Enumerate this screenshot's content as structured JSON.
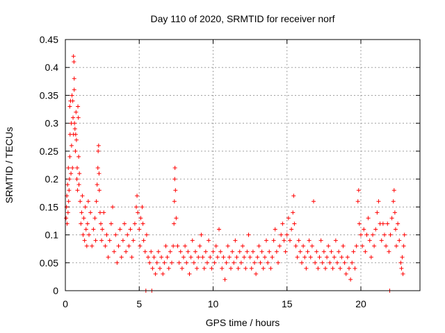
{
  "chart_data": {
    "type": "scatter",
    "title": "Day 110 of 2020, SRMTID for receiver norf",
    "xlabel": "GPS time / hours",
    "ylabel": "SRMTID / TECUs",
    "xlim": [
      0,
      24
    ],
    "ylim": [
      0,
      0.45
    ],
    "xticks": [
      0,
      5,
      10,
      15,
      20
    ],
    "yticks": [
      0,
      0.05,
      0.1,
      0.15,
      0.2,
      0.25,
      0.3,
      0.35,
      0.4,
      0.45
    ],
    "xtick_labels": [
      "0",
      "5",
      "10",
      "15",
      "20"
    ],
    "ytick_labels": [
      "0",
      "0.05",
      "0.1",
      "0.15",
      "0.2",
      "0.25",
      "0.3",
      "0.35",
      "0.4",
      "0.45"
    ],
    "grid": true,
    "marker": "+",
    "color": "#ff0000",
    "series": [
      {
        "name": "SRMTID",
        "points": [
          [
            0.05,
            0.13
          ],
          [
            0.08,
            0.15
          ],
          [
            0.1,
            0.17
          ],
          [
            0.12,
            0.12
          ],
          [
            0.15,
            0.19
          ],
          [
            0.18,
            0.14
          ],
          [
            0.2,
            0.22
          ],
          [
            0.22,
            0.16
          ],
          [
            0.25,
            0.18
          ],
          [
            0.28,
            0.2
          ],
          [
            0.3,
            0.24
          ],
          [
            0.3,
            0.33
          ],
          [
            0.32,
            0.28
          ],
          [
            0.35,
            0.34
          ],
          [
            0.38,
            0.21
          ],
          [
            0.4,
            0.3
          ],
          [
            0.42,
            0.26
          ],
          [
            0.45,
            0.35
          ],
          [
            0.48,
            0.22
          ],
          [
            0.5,
            0.34
          ],
          [
            0.52,
            0.31
          ],
          [
            0.55,
            0.28
          ],
          [
            0.55,
            0.42
          ],
          [
            0.58,
            0.41
          ],
          [
            0.6,
            0.38
          ],
          [
            0.6,
            0.36
          ],
          [
            0.62,
            0.3
          ],
          [
            0.65,
            0.29
          ],
          [
            0.68,
            0.25
          ],
          [
            0.7,
            0.28
          ],
          [
            0.72,
            0.32
          ],
          [
            0.75,
            0.27
          ],
          [
            0.78,
            0.2
          ],
          [
            0.8,
            0.22
          ],
          [
            0.82,
            0.18
          ],
          [
            0.85,
            0.33
          ],
          [
            0.88,
            0.31
          ],
          [
            0.9,
            0.24
          ],
          [
            0.92,
            0.19
          ],
          [
            0.95,
            0.21
          ],
          [
            1.0,
            0.16
          ],
          [
            1.05,
            0.12
          ],
          [
            1.1,
            0.14
          ],
          [
            1.15,
            0.17
          ],
          [
            1.2,
            0.1
          ],
          [
            1.25,
            0.13
          ],
          [
            1.3,
            0.09
          ],
          [
            1.35,
            0.15
          ],
          [
            1.4,
            0.11
          ],
          [
            1.45,
            0.08
          ],
          [
            1.5,
            0.12
          ],
          [
            1.55,
            0.16
          ],
          [
            1.6,
            0.1
          ],
          [
            1.7,
            0.14
          ],
          [
            1.8,
            0.08
          ],
          [
            1.9,
            0.11
          ],
          [
            2.0,
            0.13
          ],
          [
            2.05,
            0.09
          ],
          [
            2.1,
            0.16
          ],
          [
            2.15,
            0.19
          ],
          [
            2.2,
            0.22
          ],
          [
            2.22,
            0.25
          ],
          [
            2.25,
            0.26
          ],
          [
            2.28,
            0.21
          ],
          [
            2.3,
            0.18
          ],
          [
            2.35,
            0.14
          ],
          [
            2.4,
            0.12
          ],
          [
            2.45,
            0.09
          ],
          [
            2.5,
            0.11
          ],
          [
            2.6,
            0.14
          ],
          [
            2.7,
            0.08
          ],
          [
            2.8,
            0.1
          ],
          [
            2.9,
            0.06
          ],
          [
            3.0,
            0.09
          ],
          [
            3.1,
            0.12
          ],
          [
            3.2,
            0.15
          ],
          [
            3.3,
            0.07
          ],
          [
            3.4,
            0.1
          ],
          [
            3.5,
            0.05
          ],
          [
            3.6,
            0.08
          ],
          [
            3.7,
            0.11
          ],
          [
            3.8,
            0.06
          ],
          [
            3.9,
            0.09
          ],
          [
            4.0,
            0.12
          ],
          [
            4.1,
            0.07
          ],
          [
            4.2,
            0.1
          ],
          [
            4.3,
            0.08
          ],
          [
            4.4,
            0.11
          ],
          [
            4.5,
            0.06
          ],
          [
            4.6,
            0.09
          ],
          [
            4.7,
            0.12
          ],
          [
            4.8,
            0.15
          ],
          [
            4.85,
            0.17
          ],
          [
            4.9,
            0.14
          ],
          [
            5.0,
            0.11
          ],
          [
            5.05,
            0.08
          ],
          [
            5.1,
            0.13
          ],
          [
            5.2,
            0.15
          ],
          [
            5.25,
            0.12
          ],
          [
            5.3,
            0.09
          ],
          [
            5.4,
            0.07
          ],
          [
            5.5,
            0.1
          ],
          [
            5.6,
            0.06
          ],
          [
            5.7,
            0.05
          ],
          [
            5.8,
            0.07
          ],
          [
            5.9,
            0.04
          ],
          [
            6.0,
            0.06
          ],
          [
            6.1,
            0.03
          ],
          [
            6.2,
            0.05
          ],
          [
            6.3,
            0.07
          ],
          [
            6.4,
            0.04
          ],
          [
            6.5,
            0.06
          ],
          [
            6.6,
            0.03
          ],
          [
            6.7,
            0.05
          ],
          [
            6.8,
            0.08
          ],
          [
            6.9,
            0.06
          ],
          [
            7.0,
            0.04
          ],
          [
            7.1,
            0.07
          ],
          [
            7.2,
            0.05
          ],
          [
            7.3,
            0.08
          ],
          [
            7.35,
            0.12
          ],
          [
            7.38,
            0.16
          ],
          [
            7.4,
            0.2
          ],
          [
            7.42,
            0.22
          ],
          [
            7.45,
            0.18
          ],
          [
            7.5,
            0.13
          ],
          [
            7.6,
            0.08
          ],
          [
            7.7,
            0.05
          ],
          [
            7.8,
            0.07
          ],
          [
            7.9,
            0.04
          ],
          [
            8.0,
            0.06
          ],
          [
            8.1,
            0.08
          ],
          [
            8.2,
            0.05
          ],
          [
            8.3,
            0.07
          ],
          [
            8.4,
            0.03
          ],
          [
            8.5,
            0.06
          ],
          [
            8.6,
            0.09
          ],
          [
            8.7,
            0.05
          ],
          [
            8.8,
            0.07
          ],
          [
            8.9,
            0.04
          ],
          [
            9.0,
            0.06
          ],
          [
            9.1,
            0.08
          ],
          [
            9.2,
            0.1
          ],
          [
            9.3,
            0.06
          ],
          [
            9.4,
            0.04
          ],
          [
            9.5,
            0.07
          ],
          [
            9.6,
            0.05
          ],
          [
            9.7,
            0.09
          ],
          [
            9.8,
            0.06
          ],
          [
            9.9,
            0.04
          ],
          [
            10.0,
            0.07
          ],
          [
            10.1,
            0.05
          ],
          [
            10.2,
            0.08
          ],
          [
            10.3,
            0.06
          ],
          [
            10.4,
            0.11
          ],
          [
            10.5,
            0.07
          ],
          [
            10.6,
            0.04
          ],
          [
            10.7,
            0.06
          ],
          [
            10.8,
            0.02
          ],
          [
            10.9,
            0.05
          ],
          [
            11.0,
            0.08
          ],
          [
            11.1,
            0.06
          ],
          [
            11.2,
            0.04
          ],
          [
            11.3,
            0.07
          ],
          [
            11.4,
            0.05
          ],
          [
            11.5,
            0.09
          ],
          [
            11.6,
            0.06
          ],
          [
            11.7,
            0.04
          ],
          [
            11.8,
            0.07
          ],
          [
            11.9,
            0.05
          ],
          [
            12.0,
            0.08
          ],
          [
            12.1,
            0.06
          ],
          [
            12.2,
            0.04
          ],
          [
            12.3,
            0.07
          ],
          [
            12.4,
            0.1
          ],
          [
            12.5,
            0.06
          ],
          [
            12.6,
            0.04
          ],
          [
            12.7,
            0.07
          ],
          [
            12.8,
            0.05
          ],
          [
            12.9,
            0.03
          ],
          [
            13.0,
            0.06
          ],
          [
            13.1,
            0.08
          ],
          [
            13.2,
            0.05
          ],
          [
            13.3,
            0.07
          ],
          [
            13.4,
            0.04
          ],
          [
            13.5,
            0.06
          ],
          [
            13.6,
            0.09
          ],
          [
            13.7,
            0.05
          ],
          [
            13.8,
            0.07
          ],
          [
            13.9,
            0.04
          ],
          [
            14.0,
            0.06
          ],
          [
            14.1,
            0.09
          ],
          [
            14.2,
            0.11
          ],
          [
            14.3,
            0.07
          ],
          [
            14.4,
            0.05
          ],
          [
            14.5,
            0.08
          ],
          [
            14.6,
            0.1
          ],
          [
            14.7,
            0.12
          ],
          [
            14.8,
            0.09
          ],
          [
            14.9,
            0.07
          ],
          [
            15.0,
            0.1
          ],
          [
            15.1,
            0.13
          ],
          [
            15.2,
            0.09
          ],
          [
            15.3,
            0.11
          ],
          [
            15.4,
            0.14
          ],
          [
            15.45,
            0.17
          ],
          [
            15.5,
            0.12
          ],
          [
            15.6,
            0.08
          ],
          [
            15.7,
            0.06
          ],
          [
            15.8,
            0.09
          ],
          [
            15.9,
            0.07
          ],
          [
            16.0,
            0.05
          ],
          [
            16.1,
            0.08
          ],
          [
            16.2,
            0.06
          ],
          [
            16.3,
            0.04
          ],
          [
            16.4,
            0.07
          ],
          [
            16.5,
            0.09
          ],
          [
            16.6,
            0.06
          ],
          [
            16.7,
            0.08
          ],
          [
            16.8,
            0.16
          ],
          [
            16.9,
            0.05
          ],
          [
            17.0,
            0.07
          ],
          [
            17.1,
            0.04
          ],
          [
            17.2,
            0.06
          ],
          [
            17.3,
            0.09
          ],
          [
            17.4,
            0.05
          ],
          [
            17.5,
            0.07
          ],
          [
            17.6,
            0.04
          ],
          [
            17.7,
            0.06
          ],
          [
            17.8,
            0.08
          ],
          [
            17.9,
            0.05
          ],
          [
            18.0,
            0.07
          ],
          [
            18.1,
            0.04
          ],
          [
            18.2,
            0.06
          ],
          [
            18.3,
            0.09
          ],
          [
            18.4,
            0.05
          ],
          [
            18.5,
            0.07
          ],
          [
            18.6,
            0.04
          ],
          [
            18.7,
            0.06
          ],
          [
            18.8,
            0.08
          ],
          [
            18.9,
            0.05
          ],
          [
            19.0,
            0.03
          ],
          [
            19.1,
            0.06
          ],
          [
            19.2,
            0.04
          ],
          [
            19.3,
            0.02
          ],
          [
            19.4,
            0.05
          ],
          [
            19.5,
            0.07
          ],
          [
            19.6,
            0.04
          ],
          [
            19.7,
            0.08
          ],
          [
            19.8,
            0.16
          ],
          [
            19.85,
            0.18
          ],
          [
            19.9,
            0.12
          ],
          [
            20.0,
            0.1
          ],
          [
            20.1,
            0.08
          ],
          [
            20.2,
            0.11
          ],
          [
            20.3,
            0.07
          ],
          [
            20.4,
            0.1
          ],
          [
            20.5,
            0.13
          ],
          [
            20.6,
            0.09
          ],
          [
            20.7,
            0.06
          ],
          [
            20.8,
            0.1
          ],
          [
            20.9,
            0.08
          ],
          [
            21.0,
            0.11
          ],
          [
            21.1,
            0.14
          ],
          [
            21.2,
            0.16
          ],
          [
            21.3,
            0.12
          ],
          [
            21.4,
            0.09
          ],
          [
            21.5,
            0.12
          ],
          [
            21.6,
            0.1
          ],
          [
            21.7,
            0.08
          ],
          [
            21.8,
            0.12
          ],
          [
            21.9,
            0.07
          ],
          [
            22.0,
            0.1
          ],
          [
            22.1,
            0.13
          ],
          [
            22.2,
            0.16
          ],
          [
            22.25,
            0.18
          ],
          [
            22.3,
            0.14
          ],
          [
            22.35,
            0.11
          ],
          [
            22.4,
            0.08
          ],
          [
            22.5,
            0.12
          ],
          [
            22.6,
            0.09
          ],
          [
            22.7,
            0.05
          ],
          [
            22.75,
            0.04
          ],
          [
            22.8,
            0.06
          ],
          [
            22.85,
            0.03
          ],
          [
            22.9,
            0.08
          ],
          [
            22.95,
            0.1
          ],
          [
            5.45,
            0.0
          ],
          [
            5.85,
            0.0
          ],
          [
            21.95,
            0.0
          ]
        ]
      }
    ]
  }
}
